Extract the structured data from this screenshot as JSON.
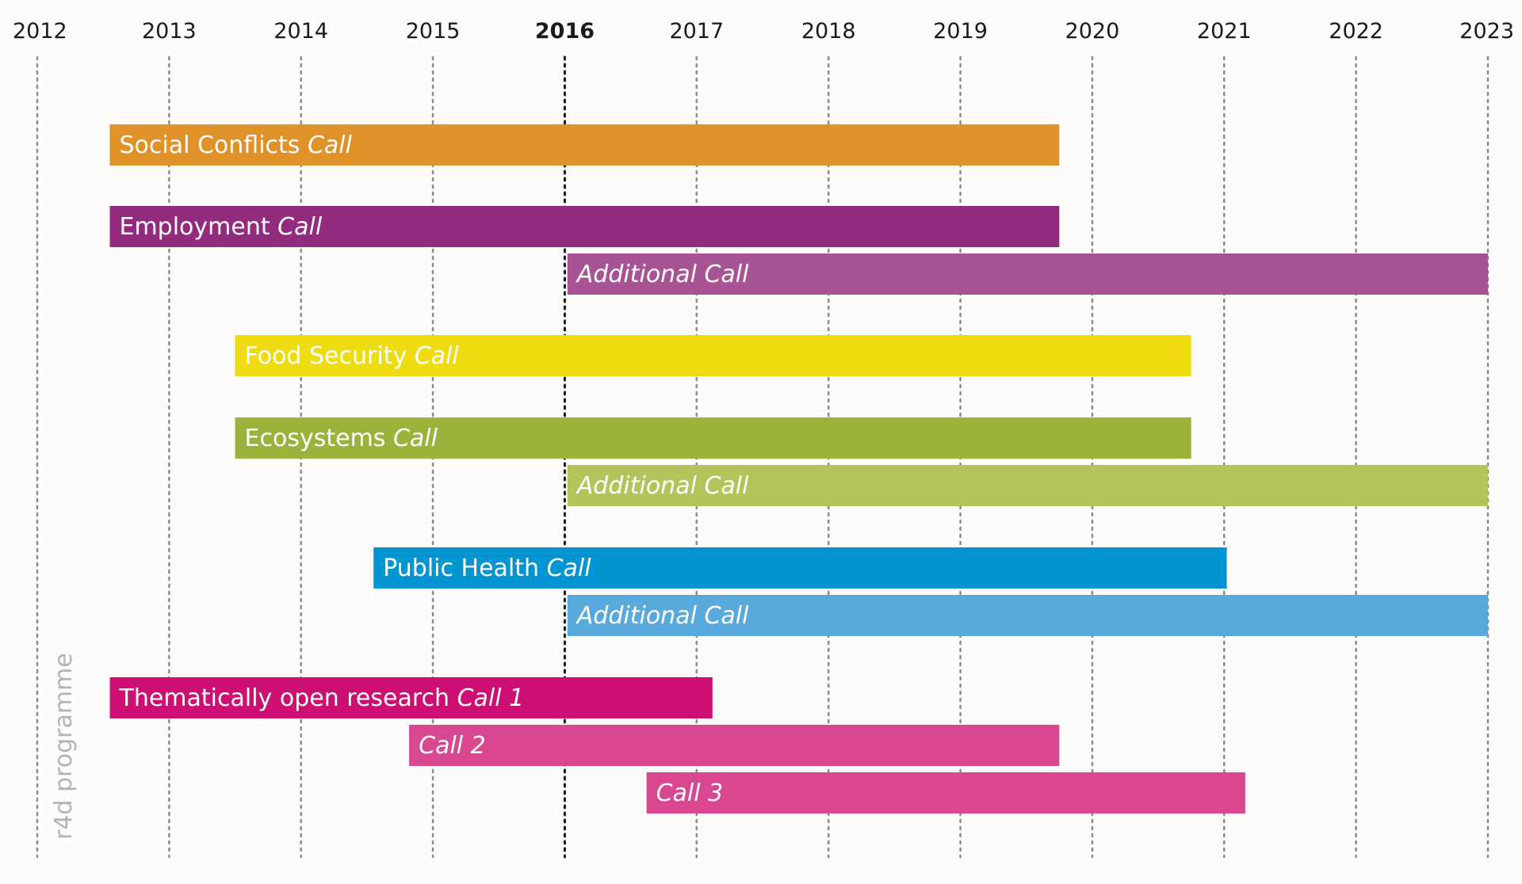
{
  "chart_data": {
    "type": "gantt",
    "title": "",
    "side_label": "r4d programme",
    "years": [
      "2012",
      "2013",
      "2014",
      "2015",
      "2016",
      "2017",
      "2018",
      "2019",
      "2020",
      "2021",
      "2022",
      "2023"
    ],
    "highlight_year": "2016",
    "xlim": [
      2012,
      2023
    ],
    "bars": [
      {
        "id": "social-conflicts",
        "label": "Social Conflicts",
        "label_italic": "Call",
        "start": 2012.55,
        "end": 2019.75,
        "row": 0,
        "color": "#e09127"
      },
      {
        "id": "employment",
        "label": "Employment",
        "label_italic": "Call",
        "start": 2012.55,
        "end": 2019.75,
        "row": 1,
        "color": "#922b7e"
      },
      {
        "id": "employment-additional",
        "label": "",
        "label_italic": "Additional Call",
        "start": 2016.02,
        "end": 2023.0,
        "row": 2,
        "color": "#a85394"
      },
      {
        "id": "food-security",
        "label": "Food Security",
        "label_italic": "Call",
        "start": 2013.5,
        "end": 2020.75,
        "row": 3,
        "color": "#efdc10"
      },
      {
        "id": "ecosystems",
        "label": "Ecosystems",
        "label_italic": "Call",
        "start": 2013.5,
        "end": 2020.75,
        "row": 4,
        "color": "#9ab43b"
      },
      {
        "id": "ecosystems-additional",
        "label": "",
        "label_italic": "Additional Call",
        "start": 2016.02,
        "end": 2023.0,
        "row": 5,
        "color": "#b5c45a"
      },
      {
        "id": "public-health",
        "label": "Public Health",
        "label_italic": "Call",
        "start": 2014.55,
        "end": 2021.02,
        "row": 6,
        "color": "#0195d1"
      },
      {
        "id": "public-health-additional",
        "label": "",
        "label_italic": "Additional Call",
        "start": 2016.02,
        "end": 2023.0,
        "row": 7,
        "color": "#5aa9dc"
      },
      {
        "id": "open-research-call-1",
        "label": "Thematically open research",
        "label_italic": "Call 1",
        "start": 2012.55,
        "end": 2017.12,
        "row": 8,
        "color": "#cd0e73"
      },
      {
        "id": "open-research-call-2",
        "label": "",
        "label_italic": "Call 2",
        "start": 2014.82,
        "end": 2019.75,
        "row": 9,
        "color": "#d8478f"
      },
      {
        "id": "open-research-call-3",
        "label": "",
        "label_italic": "Call 3",
        "start": 2016.62,
        "end": 2021.16,
        "row": 10,
        "color": "#d8478f"
      }
    ]
  },
  "colors": {
    "background": "#fdfcfa",
    "grid": "#8a8a8a",
    "grid_highlight": "#1a1a1a",
    "text": "#1a1a1a",
    "side_label": "#b3b3b3"
  }
}
